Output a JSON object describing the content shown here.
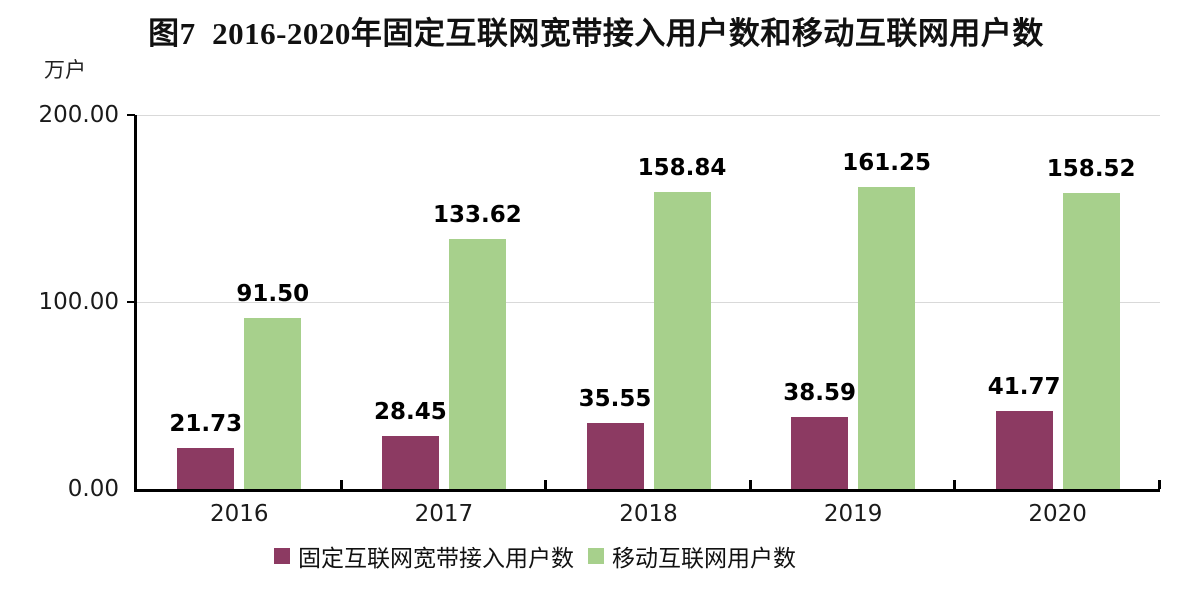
{
  "figure": {
    "title": "图7  2016-2020年固定互联网宽带接入用户数和移动互联网用户数",
    "unit_label": "万户"
  },
  "chart_data": {
    "type": "bar",
    "title": "图7 2016-2020年固定互联网宽带接入用户数和移动互联网用户数",
    "unit": "万户",
    "categories": [
      "2016",
      "2017",
      "2018",
      "2019",
      "2020"
    ],
    "series": [
      {
        "name": "固定互联网宽带接入用户数",
        "key": "fixed-broadband-users",
        "color": "#8C3A62",
        "values": [
          21.73,
          28.45,
          35.55,
          38.59,
          41.77
        ]
      },
      {
        "name": "移动互联网用户数",
        "key": "mobile-internet-users",
        "color": "#A7D08C",
        "values": [
          91.5,
          133.62,
          158.84,
          161.25,
          158.52
        ]
      }
    ],
    "ylim": [
      0,
      200
    ],
    "ytick_values": [
      0,
      100,
      200
    ],
    "ytick_labels": [
      "0.00",
      "100.00",
      "200.00"
    ],
    "grid": "horizontal gridlines at 100 and 200",
    "gridline_color": "#D9D9D9",
    "axis_color": "#000000",
    "legend_position": "bottom",
    "data_labels": "above each bar, bold, two decimals"
  }
}
